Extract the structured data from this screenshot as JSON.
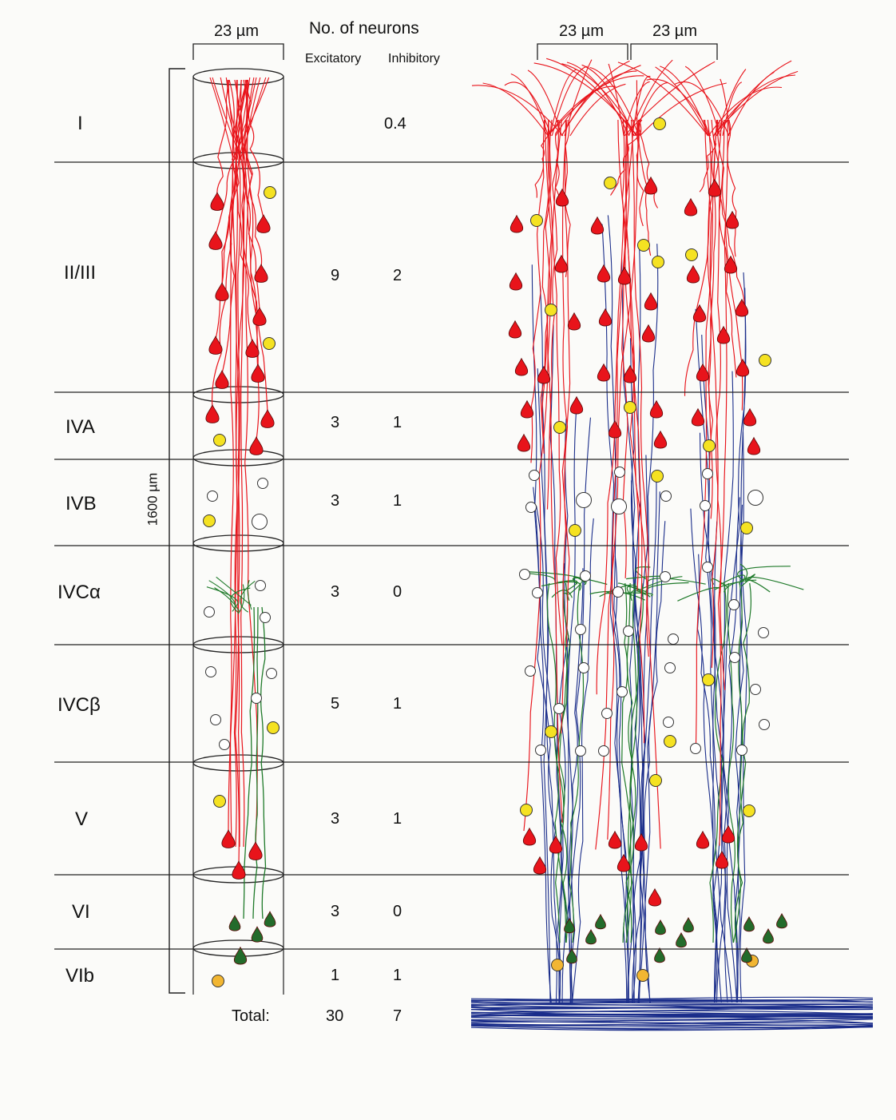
{
  "header": {
    "width_left": "23 µm",
    "title": "No. of neurons",
    "col_exc": "Excitatory",
    "col_inh": "Inhibitory",
    "width_right_a": "23 µm",
    "width_right_b": "23 µm"
  },
  "depth_label": "1600 µm",
  "layers": [
    {
      "name": "I",
      "exc": "",
      "inh": "0.4"
    },
    {
      "name": "II/III",
      "exc": "9",
      "inh": "2"
    },
    {
      "name": "IVA",
      "exc": "3",
      "inh": "1"
    },
    {
      "name": "IVB",
      "exc": "3",
      "inh": "1"
    },
    {
      "name": "IVCα",
      "exc": "3",
      "inh": "0"
    },
    {
      "name": "IVCβ",
      "exc": "5",
      "inh": "1"
    },
    {
      "name": "V",
      "exc": "3",
      "inh": "1"
    },
    {
      "name": "VI",
      "exc": "3",
      "inh": "0"
    },
    {
      "name": "VIb",
      "exc": "1",
      "inh": "1"
    }
  ],
  "total": {
    "label": "Total:",
    "exc": "30",
    "inh": "7"
  },
  "colors": {
    "pyramidal": "#e8141b",
    "interneuron": "#f5e222",
    "stellate_outline": "#333333",
    "apical_green": "#1f7a2a",
    "axon_blue": "#1a2d8a",
    "deep_green": "#236b2b",
    "vib_orange": "#f2b632"
  },
  "icons": [
    "pyramidal-neuron-icon",
    "interneuron-icon",
    "stellate-neuron-icon"
  ]
}
